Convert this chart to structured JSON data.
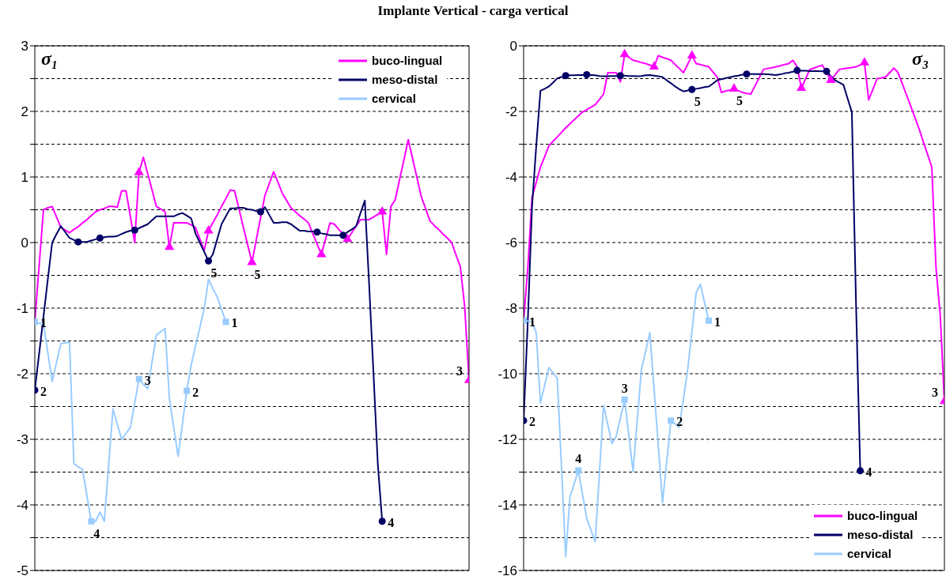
{
  "chart_data": [
    {
      "type": "line",
      "title": "Implante Vertical - carga vertical",
      "annotations": [
        "σ₁",
        "5",
        "3",
        "2",
        "5",
        "4",
        "1",
        "4",
        "3",
        "2",
        "1"
      ],
      "categories": [
        null,
        null,
        null,
        null,
        null,
        null,
        null,
        null,
        null,
        null,
        null,
        null,
        null,
        null,
        null,
        null,
        null,
        null,
        null,
        null,
        null,
        null,
        null,
        null,
        null,
        null,
        null,
        null,
        null,
        null,
        null,
        null,
        null,
        null,
        null,
        null,
        null,
        null,
        null,
        null,
        null,
        null,
        null,
        null,
        null,
        null,
        null,
        null,
        null,
        null,
        null,
        null,
        null,
        null,
        null,
        null,
        null,
        null,
        null,
        null,
        null,
        null,
        null,
        null,
        null,
        null,
        null,
        null,
        null,
        null,
        null,
        null,
        null,
        null,
        null,
        null,
        null,
        null,
        null,
        null,
        null,
        null,
        null,
        null,
        null,
        null,
        null,
        null,
        null,
        null,
        null,
        null,
        null,
        null,
        null,
        null,
        null,
        null,
        null,
        null,
        null
      ],
      "ylim": [
        -5,
        3
      ],
      "yticks": [
        -5,
        {
          "value": -4.5,
          "label": null
        },
        -4,
        {
          "value": -3.5,
          "label": null
        },
        -3,
        {
          "value": -2.5,
          "label": null
        },
        -2,
        {
          "value": -1.5,
          "label": null
        },
        -1,
        {
          "value": -0.5,
          "label": null
        },
        0,
        {
          "value": 0.5,
          "label": null
        },
        1,
        {
          "value": 1.5,
          "label": null
        },
        2,
        {
          "value": 2.5,
          "label": null
        },
        3
      ],
      "grid": "y",
      "legend": "top right",
      "tick_labels": "y",
      "series": [
        {
          "name": "buco-lingual",
          "color": "#ff00ff",
          "values": [
            -1.2,
            -0.35,
            0.5,
            0.53,
            0.55,
            0.39,
            0.23,
            0.19,
            0.15,
            0.2,
            0.24,
            0.3,
            0.35,
            0.41,
            0.47,
            0.5,
            0.52,
            0.55,
            0.55,
            0.54,
            0.79,
            0.79,
            0.4,
            0,
            1.07,
            1.3,
            1.05,
            0.8,
            0.55,
            0.51,
            0.47,
            -0.07,
            0.3,
            0.3,
            0.3,
            0.3,
            0.27,
            0.23,
            0.06,
            -0.12,
            0.18,
            0.3,
            0.42,
            0.55,
            0.67,
            0.8,
            0.79,
            0.52,
            0.24,
            -0.03,
            -0.3,
            0.04,
            0.38,
            0.72,
            0.9,
            1.08,
            0.92,
            0.75,
            0.64,
            0.53,
            0.47,
            0.41,
            0.36,
            0.3,
            0.14,
            -0.02,
            -0.18,
            0.06,
            0.3,
            0.28,
            0.2,
            0.13,
            0.05,
            0.15,
            0.25,
            0.35,
            0.35,
            0.35,
            0.39,
            0.43,
            0.47,
            -0.18,
            0.55,
            0.65,
            0.96,
            1.26,
            1.57,
            1.28,
            0.99,
            0.7,
            0.52,
            0.33,
            0.26,
            0.2,
            0.13,
            0.07,
            0,
            -0.19,
            -0.37,
            -0.98,
            -2.1
          ]
        },
        {
          "name": "meso-distal",
          "color": "#000066",
          "values": [
            -2.25,
            -1.69,
            -1.13,
            -0.56,
            0,
            0.13,
            0.25,
            0.16,
            0.07,
            0.04,
            0.01,
            0.01,
            0.01,
            0.03,
            0.05,
            0.07,
            0.08,
            0.09,
            0.09,
            0.1,
            0.13,
            0.16,
            0.18,
            0.19,
            0.22,
            0.25,
            0.28,
            0.34,
            0.4,
            0.4,
            0.4,
            0.4,
            0.4,
            0.43,
            0.45,
            0.41,
            0.37,
            0.14,
            0,
            -0.14,
            -0.28,
            -0.18,
            0.05,
            0.28,
            0.4,
            0.52,
            0.52,
            0.53,
            0.53,
            0.51,
            0.5,
            0.48,
            0.47,
            0.54,
            0.42,
            0.3,
            0.3,
            0.31,
            0.31,
            0.28,
            0.23,
            0.18,
            0.18,
            0.17,
            0.17,
            0.16,
            0.14,
            0.13,
            0.11,
            0.11,
            0.11,
            0.11,
            0.16,
            0.2,
            0.25,
            0.45,
            0.64,
            -0.65,
            -2,
            -3.39,
            -4.25,
            null,
            null,
            null,
            null,
            null,
            null,
            null,
            null,
            null,
            null,
            null,
            null,
            null,
            null,
            null,
            null,
            null,
            null,
            null,
            null
          ]
        },
        {
          "name": "cervical",
          "color": "#99ccff",
          "values": [
            -1.21,
            -1.23,
            -1.24,
            -1.68,
            -2.12,
            -1.83,
            -1.54,
            -1.53,
            -1.52,
            -3.37,
            -3.42,
            -3.46,
            -3.86,
            -4.25,
            -4.25,
            -4.11,
            -4.25,
            -3.4,
            -2.54,
            -2.77,
            -3,
            -2.91,
            -2.82,
            -2.45,
            -2.08,
            -2.16,
            -2.23,
            -1.82,
            -1.41,
            -1.36,
            -1.31,
            -2.38,
            -2.82,
            -3.26,
            -2.76,
            -2.26,
            -1.87,
            -1.58,
            -1.3,
            -1.01,
            -0.56,
            -0.7,
            -0.83,
            -1.02,
            -1.21,
            null,
            null,
            null,
            null,
            null,
            null,
            null,
            null,
            null,
            null,
            null,
            null,
            null,
            null,
            null,
            null,
            null,
            null,
            null,
            null,
            null,
            null,
            null,
            null,
            null,
            null,
            null,
            null,
            null,
            null,
            null,
            null,
            null,
            null,
            null,
            null,
            null,
            null,
            null,
            null,
            null,
            null,
            null,
            null,
            null,
            null,
            null,
            null,
            null,
            null,
            null,
            null,
            null,
            null,
            null,
            null
          ]
        },
        {
          "type": "scatter",
          "marker": "triangle",
          "color": "#ff00ff",
          "values": [
            null,
            null,
            null,
            null,
            null,
            null,
            null,
            null,
            null,
            null,
            null,
            null,
            null,
            null,
            null,
            null,
            null,
            null,
            null,
            null,
            null,
            null,
            null,
            null,
            1.07,
            null,
            null,
            null,
            null,
            null,
            null,
            -0.07,
            null,
            null,
            null,
            null,
            null,
            null,
            null,
            null,
            0.18,
            null,
            null,
            null,
            null,
            null,
            null,
            null,
            null,
            null,
            null,
            null,
            null,
            null,
            null,
            null,
            null,
            null,
            null,
            null,
            null,
            null,
            null,
            null,
            null,
            null,
            -0.18,
            null,
            null,
            null,
            null,
            null,
            0.05,
            null,
            null,
            null,
            null,
            null,
            null,
            null,
            0.47,
            null,
            null,
            null,
            null,
            null,
            null,
            null,
            null,
            null,
            null,
            null,
            null,
            null,
            null,
            null,
            null,
            null,
            null,
            null,
            null
          ]
        },
        {
          "type": "scatter",
          "marker": "circle",
          "color": "#000066",
          "values": [
            null,
            null,
            null,
            null,
            null,
            null,
            null,
            null,
            null,
            null,
            0.01,
            null,
            null,
            null,
            null,
            0.07,
            null,
            null,
            null,
            null,
            null,
            null,
            null,
            0.19,
            null,
            null,
            null,
            null,
            null,
            null,
            null,
            null,
            null,
            null,
            null,
            null,
            null,
            null,
            null,
            null,
            null,
            null,
            null,
            null,
            null,
            null,
            null,
            null,
            null,
            null,
            null,
            null,
            0.47,
            null,
            null,
            null,
            null,
            null,
            null,
            null,
            null,
            null,
            null,
            null,
            null,
            0.16,
            null,
            null,
            null,
            null,
            null,
            0.11,
            null,
            null,
            null,
            null,
            null,
            null,
            null,
            null,
            null,
            null,
            null,
            null,
            null,
            null,
            null,
            null,
            null,
            null,
            null,
            null,
            null,
            null,
            null,
            null,
            null,
            null,
            null,
            null,
            null
          ]
        },
        {
          "type": "scatter",
          "marker": "triangle",
          "color": "#ff00ff",
          "values": [
            null,
            null,
            null,
            null,
            null,
            null,
            null,
            null,
            null,
            null,
            null,
            null,
            null,
            null,
            null,
            null,
            null,
            null,
            null,
            null,
            null,
            null,
            null,
            null,
            null,
            null,
            null,
            null,
            null,
            null,
            null,
            null,
            null,
            null,
            null,
            null,
            null,
            null,
            null,
            null,
            null,
            null,
            null,
            null,
            null,
            null,
            null,
            null,
            null,
            null,
            -0.3,
            null,
            null,
            null,
            null,
            null,
            null,
            null,
            null,
            null,
            null,
            null,
            null,
            null,
            null,
            null,
            null,
            null,
            null,
            null,
            null,
            null,
            null,
            null,
            null,
            null,
            null,
            null,
            null,
            null,
            null,
            null,
            null,
            null,
            null,
            null,
            null,
            null,
            null,
            null,
            null,
            null,
            null,
            null,
            null,
            null,
            null,
            null,
            null,
            null,
            -2.1
          ]
        },
        {
          "type": "scatter",
          "marker": "circle",
          "color": "#000066",
          "values": [
            -2.25,
            null,
            null,
            null,
            null,
            null,
            null,
            null,
            null,
            null,
            null,
            null,
            null,
            null,
            null,
            null,
            null,
            null,
            null,
            null,
            null,
            null,
            null,
            null,
            null,
            null,
            null,
            null,
            null,
            null,
            null,
            null,
            null,
            null,
            null,
            null,
            null,
            null,
            null,
            null,
            -0.28,
            null,
            null,
            null,
            null,
            null,
            null,
            null,
            null,
            null,
            null,
            null,
            null,
            null,
            null,
            null,
            null,
            null,
            null,
            null,
            null,
            null,
            null,
            null,
            null,
            null,
            null,
            null,
            null,
            null,
            null,
            null,
            null,
            null,
            null,
            null,
            null,
            null,
            null,
            null,
            -4.25,
            null,
            null,
            null,
            null,
            null,
            null,
            null,
            null,
            null,
            null,
            null,
            null,
            null,
            null,
            null,
            null,
            null,
            null,
            null,
            null
          ]
        },
        {
          "type": "scatter",
          "marker": "square",
          "color": "#99ccff",
          "values": [
            -1.21,
            null,
            null,
            null,
            null,
            null,
            null,
            null,
            null,
            null,
            null,
            null,
            null,
            -4.25,
            null,
            null,
            null,
            null,
            null,
            null,
            null,
            null,
            null,
            null,
            -2.08,
            null,
            null,
            null,
            null,
            null,
            null,
            null,
            null,
            null,
            null,
            -2.26,
            null,
            null,
            null,
            null,
            null,
            null,
            null,
            null,
            -1.21,
            null,
            null,
            null,
            null,
            null,
            null,
            null,
            null,
            null,
            null,
            null,
            null,
            null,
            null,
            null,
            null,
            null,
            null,
            null,
            null,
            null,
            null,
            null,
            null,
            null,
            null,
            null,
            null,
            null,
            null,
            null,
            null,
            null,
            null,
            null,
            null,
            null,
            null,
            null,
            null,
            null,
            null,
            null,
            null,
            null,
            null,
            null,
            null,
            null,
            null,
            null,
            null,
            null,
            null,
            null,
            null
          ]
        }
      ]
    },
    {
      "type": "line",
      "annotations": [
        "σ₃",
        "5",
        "3",
        "2",
        "5",
        "4",
        "1",
        "4",
        "3",
        "2",
        "1"
      ],
      "categories": [
        null,
        null,
        null,
        null,
        null,
        null,
        null,
        null,
        null,
        null,
        null,
        null,
        null,
        null,
        null,
        null,
        null,
        null,
        null,
        null,
        null,
        null,
        null,
        null,
        null,
        null,
        null,
        null,
        null,
        null,
        null,
        null,
        null,
        null,
        null,
        null,
        null,
        null,
        null,
        null,
        null,
        null,
        null,
        null,
        null,
        null,
        null,
        null,
        null,
        null,
        null,
        null,
        null,
        null,
        null,
        null,
        null,
        null,
        null,
        null,
        null,
        null,
        null,
        null,
        null,
        null,
        null,
        null,
        null,
        null,
        null,
        null,
        null,
        null,
        null,
        null,
        null,
        null,
        null,
        null,
        null,
        null,
        null,
        null,
        null,
        null,
        null,
        null,
        null,
        null,
        null,
        null,
        null,
        null,
        null,
        null,
        null,
        null,
        null,
        null,
        null
      ],
      "ylim": [
        -16,
        0
      ],
      "yticks": [
        -16,
        {
          "value": -15,
          "label": null
        },
        -14,
        {
          "value": -13,
          "label": null
        },
        -12,
        {
          "value": -11,
          "label": null
        },
        -10,
        {
          "value": -9,
          "label": null
        },
        -8,
        {
          "value": -7,
          "label": null
        },
        -6,
        {
          "value": -5,
          "label": null
        },
        -4,
        {
          "value": -3,
          "label": null
        },
        -2,
        {
          "value": -1,
          "label": null
        },
        0
      ],
      "grid": "y",
      "legend": "bottom right",
      "tick_labels": "y",
      "series": [
        {
          "name": "buco-lingual",
          "color": "#ff00ff",
          "values": [
            -8.38,
            -6.76,
            -4.62,
            -4.16,
            -3.7,
            -3.38,
            -3.05,
            -2.91,
            -2.78,
            -2.64,
            -2.5,
            -2.38,
            -2.26,
            -2.14,
            -2.02,
            -1.95,
            -1.87,
            -1.8,
            -1.64,
            -1.47,
            -0.82,
            -0.82,
            -0.82,
            -1.1,
            -0.26,
            -0.35,
            -0.44,
            -0.47,
            -0.51,
            -0.54,
            -0.59,
            -0.64,
            -0.3,
            -0.35,
            -0.39,
            -0.44,
            -0.57,
            -0.69,
            -0.82,
            -0.56,
            -0.3,
            -0.54,
            -0.57,
            -0.61,
            -0.64,
            -0.8,
            -0.95,
            -1.42,
            -1.38,
            -1.35,
            -1.31,
            -1.37,
            -1.42,
            -1.45,
            -1.47,
            -1.22,
            -0.97,
            -0.72,
            -0.69,
            -0.67,
            -0.64,
            -0.61,
            -0.57,
            -0.54,
            -0.44,
            -0.64,
            -1.29,
            -1.01,
            -0.72,
            -0.68,
            -0.63,
            -0.59,
            -0.82,
            -1.05,
            -0.89,
            -0.72,
            -0.7,
            -0.68,
            -0.66,
            -0.64,
            -0.58,
            -0.51,
            -1.65,
            -1.33,
            -1,
            -0.98,
            -0.95,
            -0.82,
            -0.68,
            -0.82,
            -1.16,
            -1.5,
            -1.84,
            -2.19,
            -2.54,
            -2.93,
            -3.31,
            -3.7,
            -6.76,
            -8.2,
            -10.84
          ]
        },
        {
          "name": "meso-distal",
          "color": "#000066",
          "values": [
            -11.43,
            -8.38,
            -4.9,
            -3.05,
            -1.37,
            -1.31,
            -1.24,
            -1.12,
            -0.99,
            -0.95,
            -0.91,
            -0.9,
            -0.9,
            -0.89,
            -0.89,
            -0.88,
            -0.89,
            -0.9,
            -0.92,
            -0.93,
            -0.93,
            -0.92,
            -0.92,
            -0.91,
            -0.91,
            -0.92,
            -0.92,
            -0.93,
            -0.92,
            -0.9,
            -0.89,
            -0.91,
            -0.93,
            -0.95,
            -1.05,
            -1.14,
            -1.24,
            -1.32,
            -1.39,
            -1.36,
            -1.33,
            -1.31,
            -1.29,
            -1.26,
            -1.24,
            -1.15,
            -1.05,
            -1.02,
            -0.99,
            -0.96,
            -0.93,
            -0.91,
            -0.88,
            -0.86,
            -0.86,
            -0.86,
            -0.86,
            -0.86,
            -0.87,
            -0.88,
            -0.89,
            -0.87,
            -0.84,
            -0.82,
            -0.79,
            -0.75,
            -0.76,
            -0.76,
            -0.77,
            -0.77,
            -0.77,
            -0.78,
            -0.78,
            -0.92,
            -1.05,
            -1.12,
            -1.19,
            -1.61,
            -2.02,
            -7.9,
            -12.96,
            null,
            null,
            null,
            null,
            null,
            null,
            null,
            null,
            null,
            null,
            null,
            null,
            null,
            null,
            null,
            null,
            null,
            null,
            null,
            null
          ]
        },
        {
          "name": "cervical",
          "color": "#99ccff",
          "values": [
            -8.38,
            -8.4,
            -8.42,
            -8.75,
            -10.89,
            -10.35,
            -9.81,
            -9.98,
            -10.14,
            -12.83,
            -15.58,
            -13.77,
            -13.36,
            -12.95,
            -13.69,
            -14.42,
            -14.77,
            -15.12,
            -13.05,
            -10.97,
            -11.55,
            -12.13,
            -11.91,
            -11.35,
            -10.79,
            -11.89,
            -12.98,
            -11.42,
            -9.86,
            -9.31,
            -8.75,
            -10.47,
            -12.18,
            -13.94,
            -12.69,
            -11.43,
            -11.53,
            -11.63,
            -10.75,
            -9.86,
            -8.7,
            -7.54,
            -7.27,
            -7.83,
            -8.38,
            null,
            null,
            null,
            null,
            null,
            null,
            null,
            null,
            null,
            null,
            null,
            null,
            null,
            null,
            null,
            null,
            null,
            null,
            null,
            null,
            null,
            null,
            null,
            null,
            null,
            null,
            null,
            null,
            null,
            null,
            null,
            null,
            null,
            null,
            null,
            null,
            null,
            null,
            null,
            null,
            null,
            null,
            null,
            null,
            null,
            null,
            null,
            null,
            null,
            null,
            null,
            null,
            null,
            null,
            null,
            null
          ]
        },
        {
          "type": "scatter",
          "marker": "triangle",
          "color": "#ff00ff",
          "values": [
            null,
            null,
            null,
            null,
            null,
            null,
            null,
            null,
            null,
            null,
            null,
            null,
            null,
            null,
            null,
            null,
            null,
            null,
            null,
            null,
            null,
            null,
            null,
            null,
            -0.26,
            null,
            null,
            null,
            null,
            null,
            null,
            -0.64,
            null,
            null,
            null,
            null,
            null,
            null,
            null,
            null,
            -0.3,
            null,
            null,
            null,
            null,
            null,
            null,
            null,
            null,
            null,
            null,
            null,
            null,
            null,
            null,
            null,
            null,
            null,
            null,
            null,
            null,
            null,
            null,
            null,
            null,
            null,
            -1.29,
            null,
            null,
            null,
            null,
            null,
            null,
            -1.05,
            null,
            null,
            null,
            null,
            null,
            null,
            null,
            -0.51,
            null,
            null,
            null,
            null,
            null,
            null,
            null,
            null,
            null,
            null,
            null,
            null,
            null,
            null,
            null,
            null,
            null,
            null,
            null
          ]
        },
        {
          "type": "scatter",
          "marker": "circle",
          "color": "#000066",
          "values": [
            null,
            null,
            null,
            null,
            null,
            null,
            null,
            null,
            null,
            null,
            -0.91,
            null,
            null,
            null,
            null,
            -0.88,
            null,
            null,
            null,
            null,
            null,
            null,
            null,
            -0.91,
            null,
            null,
            null,
            null,
            null,
            null,
            null,
            null,
            null,
            null,
            null,
            null,
            null,
            null,
            null,
            null,
            null,
            null,
            null,
            null,
            null,
            null,
            null,
            null,
            null,
            null,
            null,
            null,
            null,
            -0.86,
            null,
            null,
            null,
            null,
            null,
            null,
            null,
            null,
            null,
            null,
            null,
            -0.75,
            null,
            null,
            null,
            null,
            null,
            null,
            -0.78,
            null,
            null,
            null,
            null,
            null,
            null,
            null,
            null,
            null,
            null,
            null,
            null,
            null,
            null,
            null,
            null,
            null,
            null,
            null,
            null,
            null,
            null,
            null,
            null,
            null,
            null,
            null,
            null
          ]
        },
        {
          "type": "scatter",
          "marker": "triangle",
          "color": "#ff00ff",
          "values": [
            null,
            null,
            null,
            null,
            null,
            null,
            null,
            null,
            null,
            null,
            null,
            null,
            null,
            null,
            null,
            null,
            null,
            null,
            null,
            null,
            null,
            null,
            null,
            null,
            null,
            null,
            null,
            null,
            null,
            null,
            null,
            null,
            null,
            null,
            null,
            null,
            null,
            null,
            null,
            null,
            null,
            null,
            null,
            null,
            null,
            null,
            null,
            null,
            null,
            null,
            -1.31,
            null,
            null,
            null,
            null,
            null,
            null,
            null,
            null,
            null,
            null,
            null,
            null,
            null,
            null,
            null,
            null,
            null,
            null,
            null,
            null,
            null,
            null,
            null,
            null,
            null,
            null,
            null,
            null,
            null,
            null,
            null,
            null,
            null,
            null,
            null,
            null,
            null,
            null,
            null,
            null,
            null,
            null,
            null,
            null,
            null,
            null,
            null,
            null,
            null,
            -10.84
          ]
        },
        {
          "type": "scatter",
          "marker": "circle",
          "color": "#000066",
          "values": [
            -11.43,
            null,
            null,
            null,
            null,
            null,
            null,
            null,
            null,
            null,
            null,
            null,
            null,
            null,
            null,
            null,
            null,
            null,
            null,
            null,
            null,
            null,
            null,
            null,
            null,
            null,
            null,
            null,
            null,
            null,
            null,
            null,
            null,
            null,
            null,
            null,
            null,
            null,
            null,
            null,
            -1.33,
            null,
            null,
            null,
            null,
            null,
            null,
            null,
            null,
            null,
            null,
            null,
            null,
            null,
            null,
            null,
            null,
            null,
            null,
            null,
            null,
            null,
            null,
            null,
            null,
            null,
            null,
            null,
            null,
            null,
            null,
            null,
            null,
            null,
            null,
            null,
            null,
            null,
            null,
            null,
            -12.96,
            null,
            null,
            null,
            null,
            null,
            null,
            null,
            null,
            null,
            null,
            null,
            null,
            null,
            null,
            null,
            null,
            null,
            null,
            null,
            null
          ]
        },
        {
          "type": "scatter",
          "marker": "square",
          "color": "#99ccff",
          "values": [
            -8.38,
            null,
            null,
            null,
            null,
            null,
            null,
            null,
            null,
            null,
            null,
            null,
            null,
            -12.95,
            null,
            null,
            null,
            null,
            null,
            null,
            null,
            null,
            null,
            null,
            -10.79,
            null,
            null,
            null,
            null,
            null,
            null,
            null,
            null,
            null,
            null,
            -11.43,
            null,
            null,
            null,
            null,
            null,
            null,
            null,
            null,
            -8.38,
            null,
            null,
            null,
            null,
            null,
            null,
            null,
            null,
            null,
            null,
            null,
            null,
            null,
            null,
            null,
            null,
            null,
            null,
            null,
            null,
            null,
            null,
            null,
            null,
            null,
            null,
            null,
            null,
            null,
            null,
            null,
            null,
            null,
            null,
            null,
            null,
            null,
            null,
            null,
            null,
            null,
            null,
            null,
            null,
            null,
            null,
            null,
            null,
            null,
            null,
            null,
            null,
            null,
            null,
            null,
            null
          ]
        }
      ]
    }
  ]
}
